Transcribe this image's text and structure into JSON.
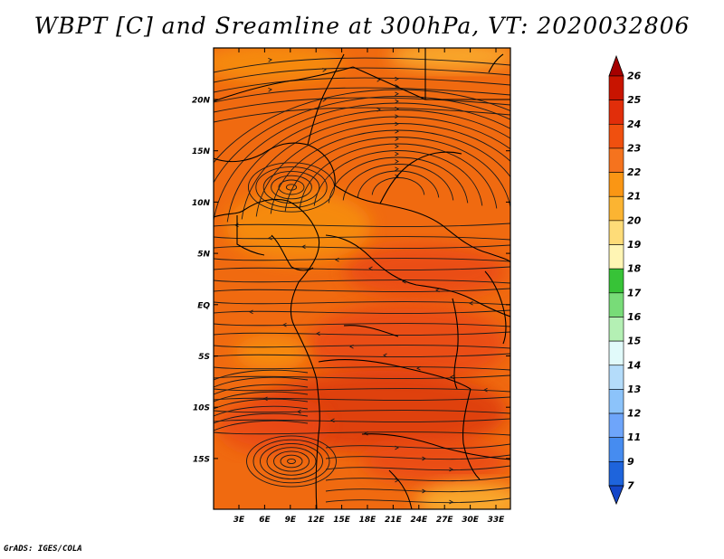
{
  "title": "WBPT [C] and Sreamline at 300hPa, VT: 2020032806",
  "credit": "GrADS: IGES/COLA",
  "map": {
    "lon_labels": [
      "3E",
      "6E",
      "9E",
      "12E",
      "15E",
      "18E",
      "21E",
      "24E",
      "27E",
      "30E",
      "33E"
    ],
    "lat_labels": [
      "20N",
      "15N",
      "10N",
      "5N",
      "EQ",
      "5S",
      "10S",
      "15S"
    ],
    "field_colors": {
      "base": "#f06a10",
      "warm": "#ea4a12",
      "warmer": "#dd3a10",
      "cool": "#f79010",
      "coolest": "#fbb230",
      "streamline": "#1a1a1a",
      "border": "#000000"
    }
  },
  "colorbar": {
    "labels": [
      "26",
      "25",
      "24",
      "23",
      "22",
      "21",
      "20",
      "19",
      "18",
      "17",
      "16",
      "15",
      "14",
      "13",
      "12",
      "11",
      "9",
      "7"
    ],
    "colors": [
      "#a50000",
      "#c81400",
      "#e12e0a",
      "#f0500f",
      "#f5731e",
      "#fa9614",
      "#fbb432",
      "#fedc78",
      "#fff5b4",
      "#37c337",
      "#78dc78",
      "#b4f0b4",
      "#e1fafa",
      "#b4dcfa",
      "#8cc3fa",
      "#6ea5fa",
      "#468cf0",
      "#1e64dc",
      "#1446c8"
    ]
  }
}
